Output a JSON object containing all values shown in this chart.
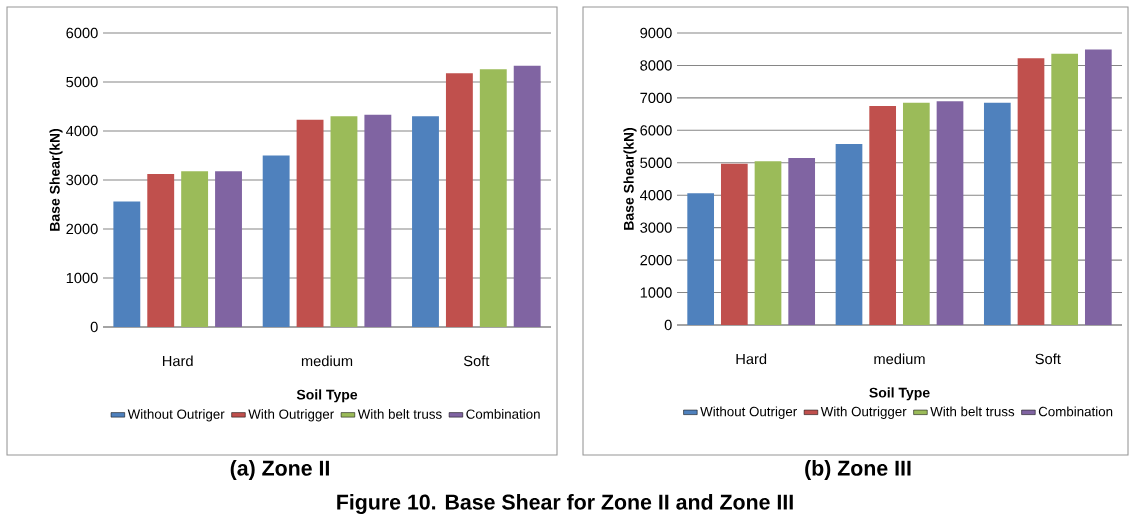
{
  "chart_data": [
    {
      "type": "bar",
      "title": "(a) Zone II",
      "xlabel": "Soil Type",
      "ylabel": "Base Shear(kN)",
      "categories": [
        "Hard",
        "medium",
        "Soft"
      ],
      "series": [
        {
          "name": "Without Outriger",
          "color": "#4f81bd",
          "values": [
            2560,
            3500,
            4300
          ]
        },
        {
          "name": "With Outrigger",
          "color": "#c0504d",
          "values": [
            3120,
            4230,
            5180
          ]
        },
        {
          "name": "With belt truss",
          "color": "#9bbb59",
          "values": [
            3180,
            4300,
            5260
          ]
        },
        {
          "name": "Combination",
          "color": "#8064a2",
          "values": [
            3180,
            4330,
            5330
          ]
        }
      ],
      "ylim": [
        0,
        6000
      ],
      "yticks": [
        0,
        1000,
        2000,
        3000,
        4000,
        5000,
        6000
      ],
      "grid": "y",
      "legend": "bottom"
    },
    {
      "type": "bar",
      "title": "(b) Zone III",
      "xlabel": "Soil Type",
      "ylabel": "Base Shear(kN)",
      "categories": [
        "Hard",
        "medium",
        "Soft"
      ],
      "series": [
        {
          "name": "Without Outriger",
          "color": "#4f81bd",
          "values": [
            4060,
            5580,
            6850
          ]
        },
        {
          "name": "With Outrigger",
          "color": "#c0504d",
          "values": [
            4970,
            6750,
            8220
          ]
        },
        {
          "name": "With belt truss",
          "color": "#9bbb59",
          "values": [
            5050,
            6850,
            8360
          ]
        },
        {
          "name": "Combination",
          "color": "#8064a2",
          "values": [
            5150,
            6900,
            8490
          ]
        }
      ],
      "ylim": [
        0,
        9000
      ],
      "yticks": [
        0,
        1000,
        2000,
        3000,
        4000,
        5000,
        6000,
        7000,
        8000,
        9000
      ],
      "grid": "y",
      "legend": "bottom",
      "annotations": [
        "Figure 10. Base Shear for Zone II and Zone III"
      ]
    }
  ]
}
